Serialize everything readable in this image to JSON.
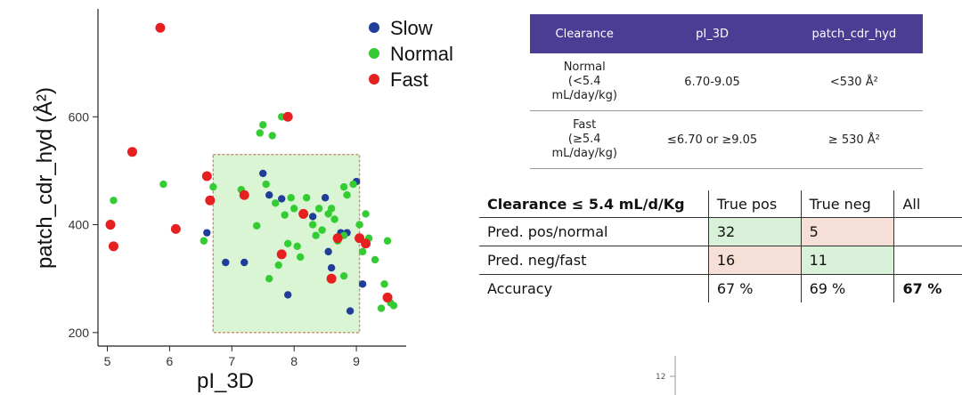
{
  "chart_data": {
    "type": "scatter",
    "xlabel": "pI_3D",
    "ylabel": "patch_cdr_hyd (Å²)",
    "xlim": [
      4.85,
      9.8
    ],
    "ylim": [
      175,
      800
    ],
    "xticks": [
      5,
      6,
      7,
      8,
      9
    ],
    "yticks": [
      200,
      400,
      600
    ],
    "legend_position": "top-right",
    "region": {
      "x": [
        6.7,
        9.05
      ],
      "y": [
        200,
        530
      ],
      "color": "#d9f5d4"
    },
    "series": [
      {
        "name": "Slow",
        "color": "#1f3d99",
        "points": [
          [
            6.6,
            385
          ],
          [
            6.9,
            330
          ],
          [
            7.2,
            330
          ],
          [
            7.5,
            495
          ],
          [
            7.6,
            455
          ],
          [
            7.8,
            448
          ],
          [
            7.9,
            270
          ],
          [
            8.3,
            415
          ],
          [
            8.5,
            450
          ],
          [
            8.55,
            350
          ],
          [
            8.6,
            320
          ],
          [
            8.75,
            385
          ],
          [
            8.85,
            385
          ],
          [
            8.9,
            240
          ],
          [
            9.0,
            480
          ],
          [
            9.1,
            290
          ]
        ]
      },
      {
        "name": "Normal",
        "color": "#33cc33",
        "points": [
          [
            5.1,
            445
          ],
          [
            5.9,
            475
          ],
          [
            6.55,
            370
          ],
          [
            6.7,
            470
          ],
          [
            7.15,
            465
          ],
          [
            7.4,
            398
          ],
          [
            7.45,
            570
          ],
          [
            7.5,
            585
          ],
          [
            7.55,
            475
          ],
          [
            7.6,
            300
          ],
          [
            7.65,
            565
          ],
          [
            7.7,
            440
          ],
          [
            7.75,
            325
          ],
          [
            7.8,
            600
          ],
          [
            7.85,
            418
          ],
          [
            7.9,
            365
          ],
          [
            7.95,
            450
          ],
          [
            8.0,
            430
          ],
          [
            8.05,
            360
          ],
          [
            8.1,
            340
          ],
          [
            8.2,
            450
          ],
          [
            8.3,
            400
          ],
          [
            8.35,
            380
          ],
          [
            8.4,
            430
          ],
          [
            8.45,
            390
          ],
          [
            8.55,
            420
          ],
          [
            8.6,
            430
          ],
          [
            8.65,
            410
          ],
          [
            8.7,
            370
          ],
          [
            8.8,
            380
          ],
          [
            8.8,
            470
          ],
          [
            8.85,
            455
          ],
          [
            8.8,
            305
          ],
          [
            8.95,
            475
          ],
          [
            9.05,
            400
          ],
          [
            9.1,
            350
          ],
          [
            9.15,
            420
          ],
          [
            9.2,
            375
          ],
          [
            9.3,
            335
          ],
          [
            9.4,
            245
          ],
          [
            9.45,
            290
          ],
          [
            9.5,
            370
          ],
          [
            9.55,
            255
          ],
          [
            9.6,
            250
          ]
        ]
      },
      {
        "name": "Fast",
        "color": "#e62020",
        "points": [
          [
            5.05,
            400
          ],
          [
            5.1,
            360
          ],
          [
            5.4,
            535
          ],
          [
            5.85,
            765
          ],
          [
            6.1,
            392
          ],
          [
            6.6,
            490
          ],
          [
            6.65,
            445
          ],
          [
            7.2,
            455
          ],
          [
            7.8,
            345
          ],
          [
            7.9,
            600
          ],
          [
            8.15,
            420
          ],
          [
            8.6,
            300
          ],
          [
            8.7,
            375
          ],
          [
            9.05,
            375
          ],
          [
            9.15,
            365
          ],
          [
            9.5,
            265
          ]
        ]
      }
    ]
  },
  "criteria_table": {
    "headers": [
      "Clearance",
      "pI_3D",
      "patch_cdr_hyd"
    ],
    "rows": [
      [
        "Normal\n(<5.4\nmL/day/kg)",
        "6.70-9.05",
        "<530 Å²"
      ],
      [
        "Fast\n(≥5.4\nmL/day/kg)",
        "≤6.70 or ≥9.05",
        "≥ 530 Å²"
      ]
    ],
    "header_color": "#4b3c94"
  },
  "confusion_table": {
    "headers": [
      "Clearance ≤ 5.4 mL/d/Kg",
      "True pos",
      "True neg",
      "All"
    ],
    "rows": [
      [
        "Pred. pos/normal",
        "32",
        "5",
        ""
      ],
      [
        "Pred. neg/fast",
        "16",
        "11",
        ""
      ],
      [
        "Accuracy",
        "67 %",
        "69 %",
        "67 %"
      ]
    ],
    "colors": {
      "green": "#d9f1d9",
      "pink": "#f6dfd6"
    }
  },
  "mini_chart": {
    "ytick": "12"
  }
}
